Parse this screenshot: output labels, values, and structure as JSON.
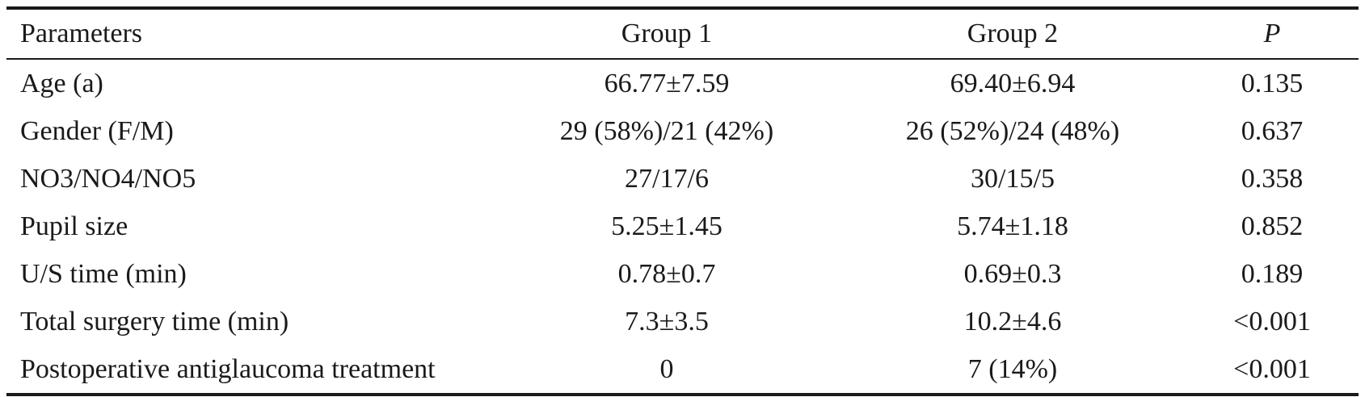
{
  "table": {
    "headers": {
      "parameters": "Parameters",
      "group1": "Group 1",
      "group2": "Group 2",
      "p": "P"
    },
    "rows": [
      {
        "parameter": "Age (a)",
        "group1": "66.77±7.59",
        "group2": "69.40±6.94",
        "p": "0.135"
      },
      {
        "parameter": "Gender (F/M)",
        "group1": "29 (58%)/21 (42%)",
        "group2": "26 (52%)/24 (48%)",
        "p": "0.637"
      },
      {
        "parameter": "NO3/NO4/NO5",
        "group1": "27/17/6",
        "group2": "30/15/5",
        "p": "0.358"
      },
      {
        "parameter": "Pupil size",
        "group1": "5.25±1.45",
        "group2": "5.74±1.18",
        "p": "0.852"
      },
      {
        "parameter": "U/S time (min)",
        "group1": "0.78±0.7",
        "group2": "0.69±0.3",
        "p": "0.189"
      },
      {
        "parameter": "Total surgery time (min)",
        "group1": "7.3±3.5",
        "group2": "10.2±4.6",
        "p": "<0.001"
      },
      {
        "parameter": "Postoperative antiglaucoma treatment",
        "group1": "0",
        "group2": "7 (14%)",
        "p": "<0.001"
      }
    ]
  }
}
